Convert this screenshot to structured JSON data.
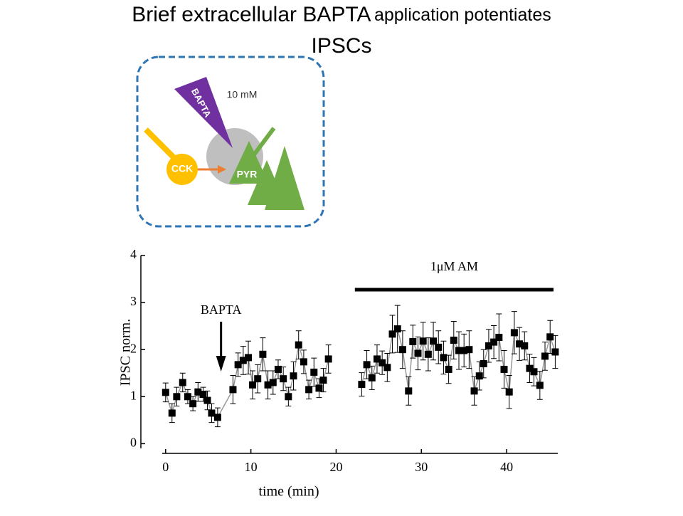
{
  "title": [
    "Brief extracellular BAPTA",
    "application potentiates",
    "IPSCs"
  ],
  "diagram": {
    "concentration": "10 mM",
    "pipette": "BAPTA",
    "interneuron": "CCK",
    "pyramidal": "PYR"
  },
  "chart_data": {
    "type": "scatter",
    "x_label": "time (min)",
    "y_label": "IPSC norm.",
    "xlim": [
      -0.4,
      46
    ],
    "ylim": [
      -0.1,
      4.0
    ],
    "xticks": [
      0,
      10,
      20,
      30,
      40
    ],
    "yticks": [
      0,
      1,
      2,
      3,
      4
    ],
    "color": "#000000",
    "line_color": "#999999",
    "x": [
      0.0,
      0.75,
      1.3,
      2.0,
      2.6,
      3.2,
      3.8,
      4.4,
      4.9,
      5.4,
      6.1,
      7.9,
      8.5,
      9.1,
      9.7,
      10.2,
      10.8,
      11.4,
      12.0,
      12.6,
      13.2,
      13.8,
      14.4,
      15.0,
      15.6,
      16.2,
      16.8,
      17.4,
      18.0,
      18.5,
      19.1,
      21.0,
      23.0,
      23.6,
      24.2,
      24.8,
      25.4,
      26.0,
      26.6,
      27.2,
      27.8,
      28.5,
      29.0,
      29.6,
      30.2,
      30.8,
      31.4,
      32.0,
      32.6,
      33.2,
      33.8,
      34.4,
      35.0,
      35.6,
      36.2,
      36.8,
      37.3,
      37.9,
      38.5,
      39.1,
      39.7,
      40.3,
      40.9,
      41.5,
      42.1,
      42.7,
      43.2,
      43.9,
      44.5,
      45.1,
      45.7
    ],
    "values": [
      1.09,
      0.65,
      1.0,
      1.3,
      1.0,
      0.85,
      1.1,
      1.05,
      0.92,
      0.65,
      0.56,
      1.15,
      1.68,
      1.77,
      1.83,
      1.25,
      1.38,
      1.9,
      1.25,
      1.3,
      1.58,
      1.38,
      1.0,
      1.44,
      2.1,
      1.74,
      1.15,
      1.52,
      1.18,
      1.35,
      1.8,
      null,
      1.26,
      1.68,
      1.4,
      1.8,
      1.72,
      1.62,
      2.33,
      2.44,
      2.0,
      1.12,
      2.17,
      1.92,
      2.18,
      1.9,
      2.18,
      2.05,
      1.83,
      1.58,
      2.2,
      1.98,
      1.98,
      2.0,
      1.12,
      1.44,
      1.7,
      2.08,
      2.16,
      2.26,
      1.58,
      1.1,
      2.36,
      2.12,
      2.08,
      1.6,
      1.53,
      1.24,
      1.86,
      2.27,
      1.95
    ],
    "errors": [
      0.2,
      0.2,
      0.2,
      0.2,
      0.15,
      0.15,
      0.2,
      0.15,
      0.2,
      0.2,
      0.2,
      0.3,
      0.25,
      0.3,
      0.35,
      0.3,
      0.3,
      0.35,
      0.3,
      0.25,
      0.2,
      0.25,
      0.2,
      0.3,
      0.3,
      0.25,
      0.2,
      0.3,
      0.2,
      0.25,
      0.3,
      null,
      0.25,
      0.3,
      0.25,
      0.3,
      0.25,
      0.3,
      0.4,
      0.5,
      0.4,
      0.3,
      0.35,
      0.35,
      0.4,
      0.35,
      0.4,
      0.35,
      0.35,
      0.3,
      0.4,
      0.4,
      0.35,
      0.4,
      0.3,
      0.3,
      0.3,
      0.35,
      0.35,
      0.5,
      0.4,
      0.35,
      0.45,
      0.35,
      0.3,
      0.3,
      0.3,
      0.3,
      0.3,
      0.35,
      0.35
    ],
    "annotations": [
      {
        "text": "BAPTA",
        "x": 6.5
      },
      {
        "text": "1μM AM",
        "x_start": 22.2,
        "x_end": 45.5
      }
    ]
  }
}
